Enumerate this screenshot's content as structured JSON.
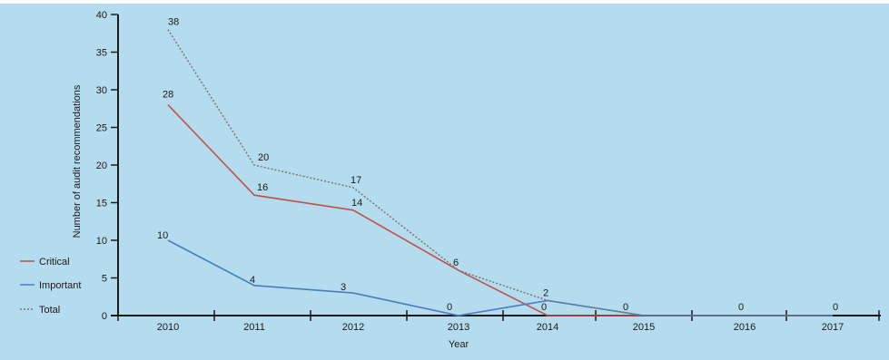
{
  "chart_data": {
    "type": "line",
    "categories": [
      "2010",
      "2011",
      "2012",
      "2013",
      "2014",
      "2015",
      "2016",
      "2017"
    ],
    "series": [
      {
        "name": "Critical",
        "values": [
          28,
          16,
          14,
          6,
          0,
          0,
          0,
          0
        ],
        "color": "#c0504d",
        "style": "solid"
      },
      {
        "name": "Important",
        "values": [
          10,
          4,
          3,
          0,
          2,
          0,
          0,
          0
        ],
        "color": "#4a7ebb",
        "style": "solid"
      },
      {
        "name": "Total",
        "values": [
          38,
          20,
          17,
          6,
          2,
          0,
          0,
          0
        ],
        "color": "#777777",
        "style": "dotted"
      }
    ],
    "data_labels": [
      {
        "category": "2010",
        "value": 38,
        "text": "38"
      },
      {
        "category": "2010",
        "value": 28,
        "text": "28"
      },
      {
        "category": "2010",
        "value": 10,
        "text": "10"
      },
      {
        "category": "2011",
        "value": 20,
        "text": "20"
      },
      {
        "category": "2011",
        "value": 16,
        "text": "16"
      },
      {
        "category": "2011",
        "value": 4,
        "text": "4"
      },
      {
        "category": "2012",
        "value": 17,
        "text": "17"
      },
      {
        "category": "2012",
        "value": 14,
        "text": "14"
      },
      {
        "category": "2012",
        "value": 3,
        "text": "3"
      },
      {
        "category": "2013",
        "value": 6,
        "text": "6"
      },
      {
        "category": "2013",
        "value": 0,
        "text": "0"
      },
      {
        "category": "2014",
        "value": 2,
        "text": "2"
      },
      {
        "category": "2014",
        "value": 0,
        "text": "0"
      },
      {
        "category": "2015",
        "value": 0,
        "text": "0"
      },
      {
        "category": "2016",
        "value": 0,
        "text": "0"
      },
      {
        "category": "2017",
        "value": 0,
        "text": "0"
      }
    ],
    "xlabel": "Year",
    "ylabel": "Number of audit recommendations",
    "ylim": [
      0,
      40
    ],
    "yticks": [
      0,
      5,
      10,
      15,
      20,
      25,
      30,
      35,
      40
    ],
    "grid": false,
    "legend_placement": "bottom-left",
    "background_color": "#b4dcee",
    "axis_color": "#1a1a1a"
  }
}
